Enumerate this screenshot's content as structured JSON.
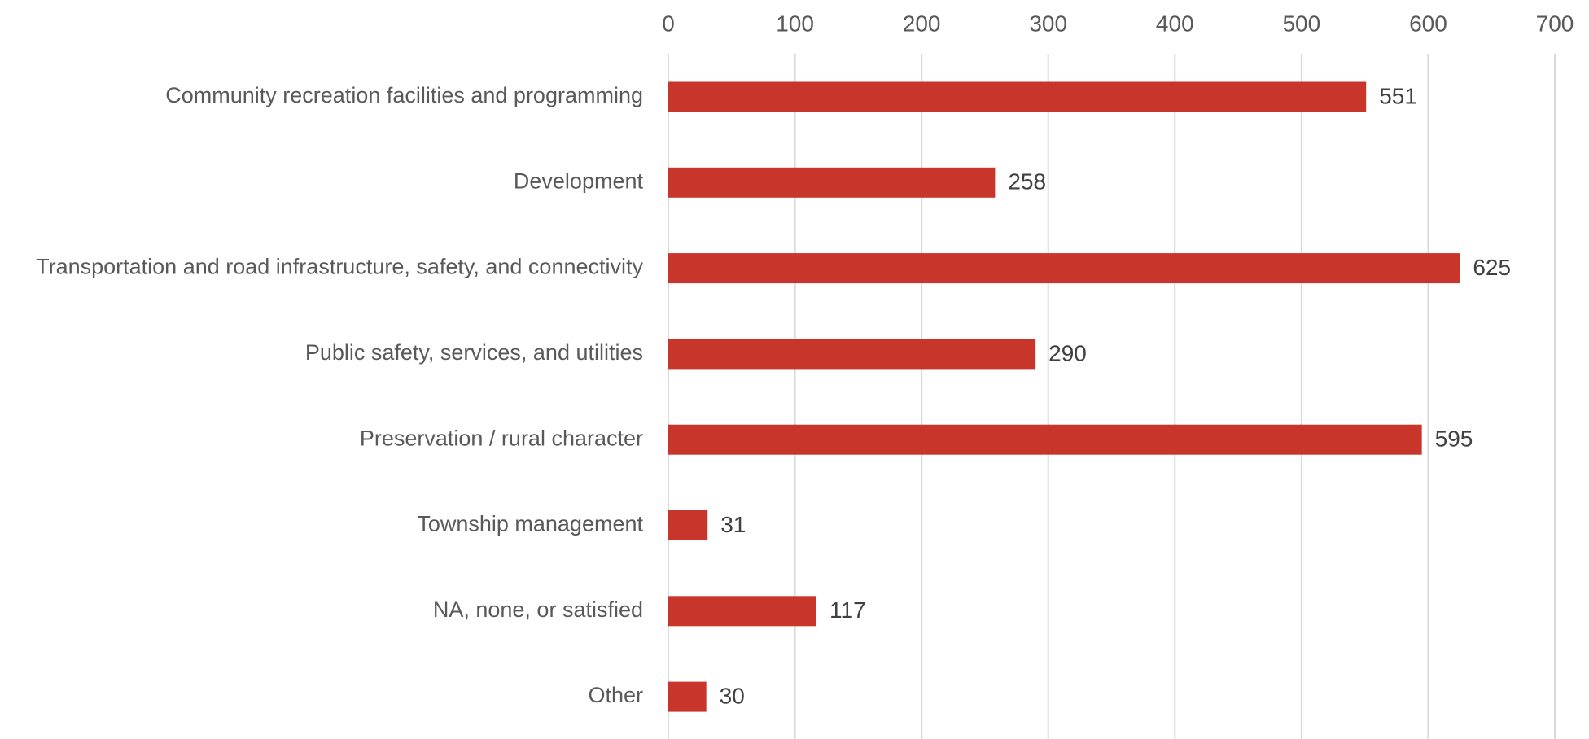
{
  "chart_data": {
    "type": "bar",
    "orientation": "horizontal",
    "categories": [
      "Community recreation facilities and programming",
      "Development",
      "Transportation and road infrastructure, safety, and connectivity",
      "Public safety, services, and utilities",
      "Preservation / rural character",
      "Township management",
      "NA, none, or satisfied",
      "Other"
    ],
    "values": [
      551,
      258,
      625,
      290,
      595,
      31,
      117,
      30
    ],
    "xlim": [
      0,
      700
    ],
    "x_ticks": [
      "0",
      "100",
      "200",
      "300",
      "400",
      "500",
      "600",
      "700"
    ],
    "x_axis_position": "top",
    "grid": true,
    "data_labels": true,
    "title": "",
    "xlabel": "",
    "ylabel": "",
    "colors": {
      "bar": "#C8352A",
      "gridline": "#D9D9D9",
      "text": "#595959"
    }
  }
}
